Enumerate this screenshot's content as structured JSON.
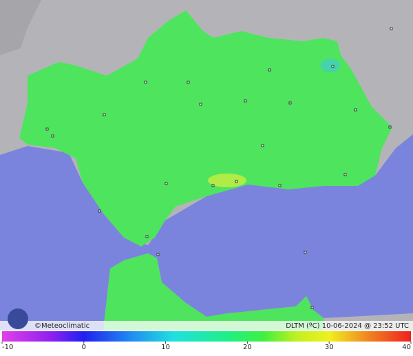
{
  "map": {
    "credit": "©Meteoclimatic",
    "caption": "DLTM (ºC) 10-06-2024 @ 23:52 UTC",
    "colorbar": {
      "ticks": [
        -10,
        0,
        10,
        20,
        30,
        40
      ]
    }
  }
}
